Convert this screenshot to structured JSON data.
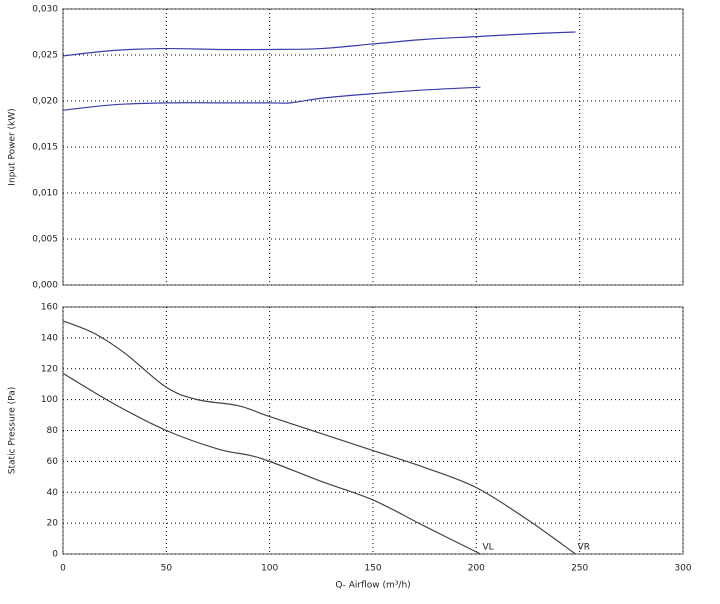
{
  "chart_data": [
    {
      "type": "line",
      "y_label": "Input Power (kW)",
      "xlim": [
        0,
        300
      ],
      "xticks": [
        0,
        50,
        100,
        150,
        200,
        250,
        300
      ],
      "ylim": [
        0,
        0.03
      ],
      "yticks": [
        {
          "value": 0,
          "label": "0,000"
        },
        {
          "value": 0.005,
          "label": "0,005"
        },
        {
          "value": 0.01,
          "label": "0,010"
        },
        {
          "value": 0.015,
          "label": "0,015"
        },
        {
          "value": 0.02,
          "label": "0,020"
        },
        {
          "value": 0.025,
          "label": "0,025"
        },
        {
          "value": 0.03,
          "label": "0,030"
        }
      ],
      "grid": true,
      "series": [
        {
          "color": "#3c3ca8",
          "x": [
            0,
            25,
            50,
            75,
            100,
            125,
            150,
            175,
            200,
            225,
            248
          ],
          "values": [
            0.0249,
            0.0255,
            0.0257,
            0.0256,
            0.0256,
            0.0257,
            0.0262,
            0.0267,
            0.027,
            0.0273,
            0.0275
          ]
        },
        {
          "color": "#3c3ca8",
          "x": [
            0,
            25,
            50,
            75,
            100,
            110,
            125,
            150,
            175,
            202
          ],
          "values": [
            0.019,
            0.0196,
            0.0198,
            0.0198,
            0.0198,
            0.0198,
            0.0203,
            0.0208,
            0.0212,
            0.0215
          ]
        }
      ]
    },
    {
      "type": "line",
      "y_label": "Static Pressure (Pa)",
      "x_label": "Q- Airflow (m³/h)",
      "xlim": [
        0,
        300
      ],
      "xticks": [
        0,
        50,
        100,
        150,
        200,
        250,
        300
      ],
      "ylim": [
        0,
        160
      ],
      "yticks": [
        0,
        20,
        40,
        60,
        80,
        100,
        120,
        140,
        160
      ],
      "grid": true,
      "series": [
        {
          "name": "VR",
          "color": "#444444",
          "x": [
            0,
            15,
            30,
            50,
            65,
            85,
            100,
            125,
            150,
            175,
            200,
            225,
            248
          ],
          "values": [
            151,
            143,
            130,
            108,
            100,
            96,
            89,
            78,
            67,
            56,
            43,
            22,
            0
          ]
        },
        {
          "name": "VL",
          "color": "#444444",
          "x": [
            0,
            25,
            50,
            75,
            90,
            100,
            125,
            150,
            175,
            202
          ],
          "values": [
            117,
            97,
            80,
            68,
            64,
            60,
            47,
            35,
            18,
            0
          ]
        }
      ]
    }
  ]
}
